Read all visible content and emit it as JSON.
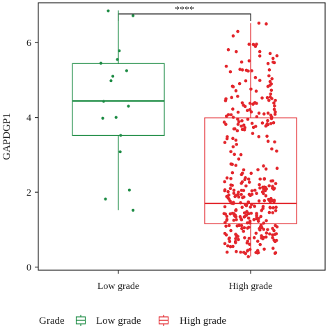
{
  "chart_data": {
    "type": "box",
    "ylabel": "GAPDGP1",
    "xlabel": "",
    "ylim": [
      0,
      7
    ],
    "yticks": [
      0,
      2,
      4,
      6
    ],
    "categories": [
      "Low grade",
      "High grade"
    ],
    "significance": "****",
    "legend": {
      "title": "Grade",
      "placement": "bottom"
    },
    "series": [
      {
        "name": "Low grade",
        "color": "#1e8c45",
        "box": {
          "min": 1.52,
          "q1": 3.52,
          "median": 4.44,
          "q3": 5.44,
          "max": 6.86
        },
        "points": [
          [
            0.78,
            6.85
          ],
          [
            1.32,
            6.72
          ],
          [
            1.02,
            5.78
          ],
          [
            0.98,
            5.55
          ],
          [
            0.62,
            5.45
          ],
          [
            1.18,
            5.25
          ],
          [
            0.88,
            5.1
          ],
          [
            0.84,
            4.98
          ],
          [
            0.68,
            4.43
          ],
          [
            1.22,
            4.3
          ],
          [
            0.66,
            3.98
          ],
          [
            0.95,
            4.0
          ],
          [
            1.05,
            3.52
          ],
          [
            1.04,
            3.08
          ],
          [
            1.24,
            2.06
          ],
          [
            0.72,
            1.82
          ],
          [
            1.32,
            1.52
          ]
        ]
      },
      {
        "name": "High grade",
        "color": "#e3262c",
        "box": {
          "min": 0.28,
          "q1": 1.16,
          "median": 1.7,
          "q3": 3.99,
          "max": 6.52
        },
        "points": []
      }
    ]
  }
}
